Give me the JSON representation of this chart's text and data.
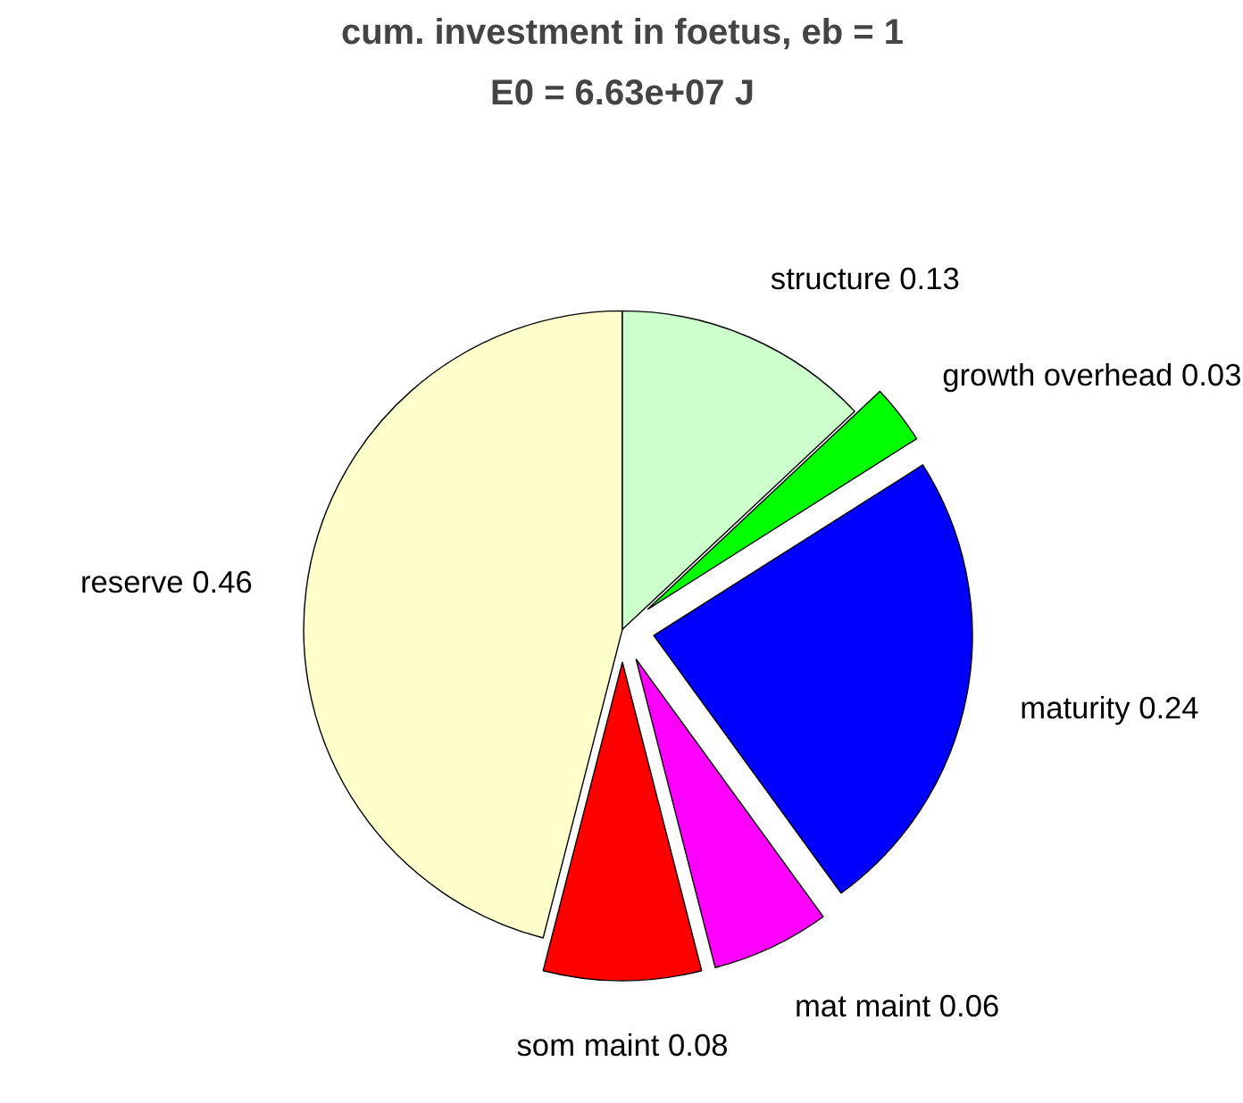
{
  "chart_data": {
    "type": "pie",
    "title": "cum. investment in foetus, eb = 1",
    "subtitle": "E0 = 6.63e+07 J",
    "categories": [
      "reserve 0.46",
      "som maint 0.08",
      "mat maint 0.06",
      "maturity 0.24",
      "growth overhead 0.03",
      "structure 0.13"
    ],
    "values": [
      0.46,
      0.08,
      0.06,
      0.24,
      0.03,
      0.13
    ],
    "colors": [
      "#ffffcc",
      "#ff0000",
      "#ff00ff",
      "#0000ff",
      "#00ff00",
      "#ccffcc"
    ]
  }
}
